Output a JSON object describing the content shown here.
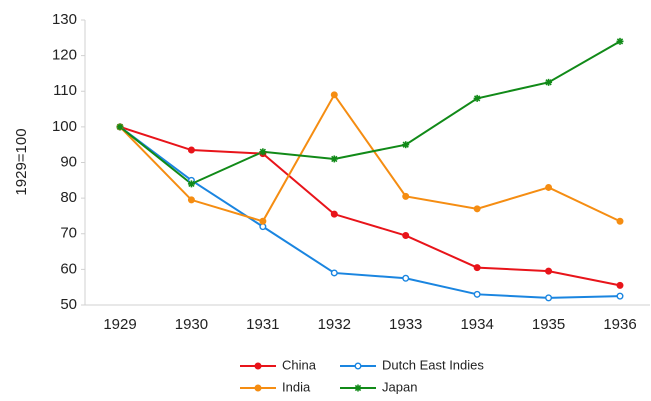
{
  "chart_data": {
    "type": "line",
    "y_label": "1929=100",
    "categories": [
      "1929",
      "1930",
      "1931",
      "1932",
      "1933",
      "1934",
      "1935",
      "1936"
    ],
    "ylim": [
      50,
      130
    ],
    "yticks": [
      50,
      60,
      70,
      80,
      90,
      100,
      110,
      120,
      130
    ],
    "grid": false,
    "legend": "bottom",
    "series": [
      {
        "name": "China",
        "color": "#e8141a",
        "marker": "filled-circle",
        "values": [
          100,
          93.5,
          92.5,
          75.5,
          69.5,
          60.5,
          59.5,
          55.5
        ]
      },
      {
        "name": "Dutch East Indies",
        "color": "#1a85e0",
        "marker": "open-circle",
        "values": [
          100,
          85,
          72,
          59,
          57.5,
          53,
          52,
          52.5
        ]
      },
      {
        "name": "India",
        "color": "#f58d12",
        "marker": "filled-circle",
        "values": [
          100,
          79.5,
          73.5,
          109,
          80.5,
          77,
          83,
          73.5
        ]
      },
      {
        "name": "Japan",
        "color": "#118a18",
        "marker": "star",
        "values": [
          100,
          84,
          93,
          91,
          95,
          108,
          112.5,
          124
        ]
      }
    ]
  }
}
